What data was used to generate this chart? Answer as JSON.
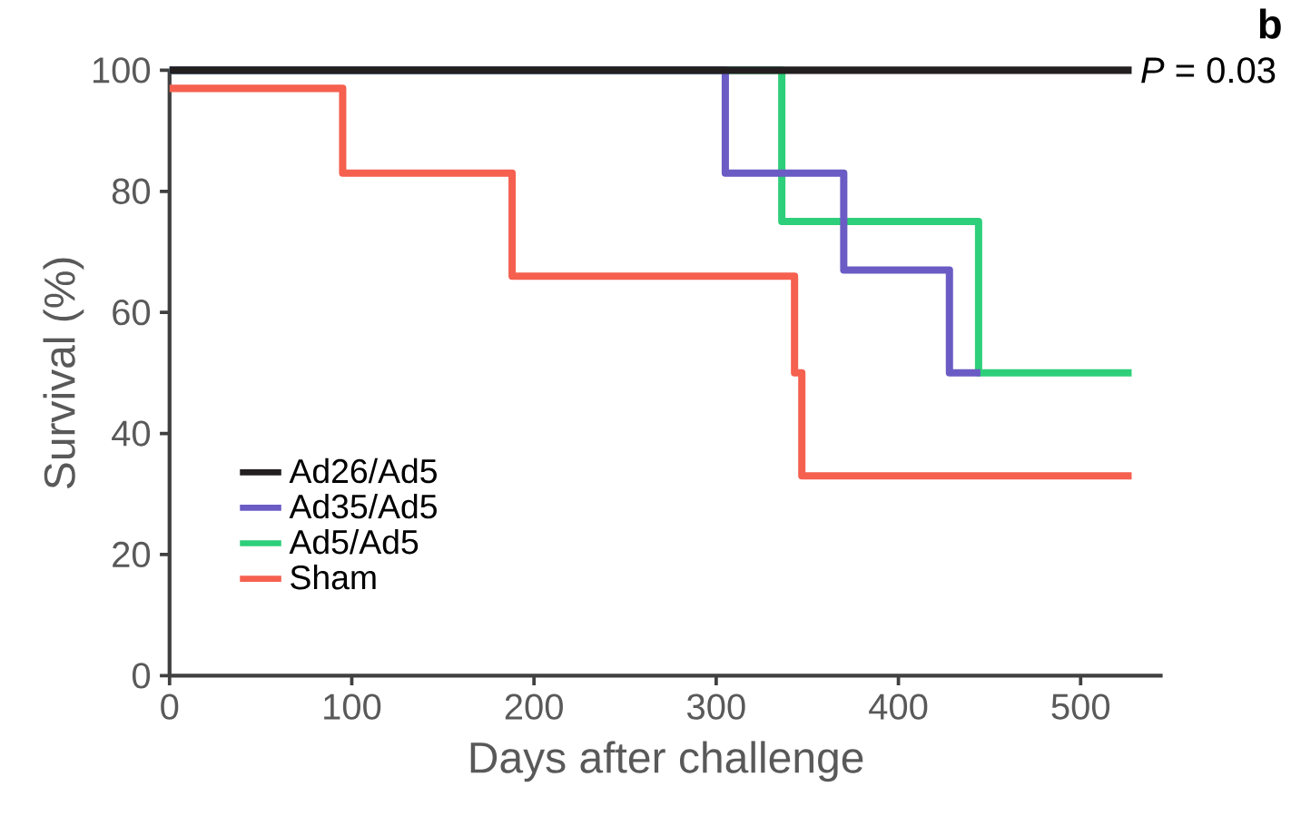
{
  "chart_data": {
    "type": "step",
    "xlabel": "Days after challenge",
    "ylabel": "Survival (%)",
    "xlim": [
      0,
      545
    ],
    "ylim": [
      0,
      100
    ],
    "xticks": [
      0,
      100,
      200,
      300,
      400,
      500
    ],
    "yticks": [
      0,
      20,
      40,
      60,
      80,
      100
    ],
    "grid": false,
    "legend": "bottom left",
    "line_style": "solid",
    "marker": "none",
    "annotations": [
      "*P* = 0.03",
      "**b**"
    ],
    "series": [
      {
        "name": "Ad26/Ad5",
        "color": "#231f20",
        "x": [
          0,
          528
        ],
        "values": [
          100,
          100
        ]
      },
      {
        "name": "Ad35/Ad5",
        "color": "#6a5cc4",
        "x": [
          0,
          305,
          370,
          428,
          445
        ],
        "values": [
          100,
          83,
          67,
          50,
          50
        ]
      },
      {
        "name": "Ad5/Ad5",
        "color": "#2ecf7a",
        "x": [
          0,
          336,
          444,
          528
        ],
        "values": [
          100,
          75,
          50,
          50
        ]
      },
      {
        "name": "Sham",
        "color": "#f5604f",
        "x": [
          0,
          95,
          188,
          343,
          347,
          528
        ],
        "values": [
          97,
          83,
          66,
          50,
          33,
          33
        ]
      }
    ]
  }
}
